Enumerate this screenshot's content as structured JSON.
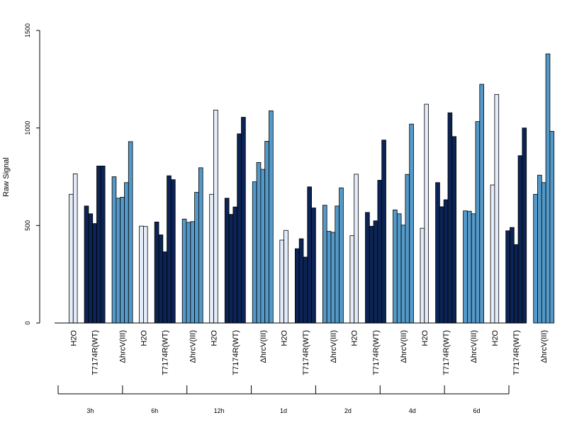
{
  "chart_data": {
    "type": "bar",
    "ylabel": "Raw Signal",
    "ylim": [
      0,
      1500
    ],
    "yticks": [
      0,
      500,
      1000,
      1500
    ],
    "groups": [
      "3h",
      "6h",
      "12h",
      "1d",
      "2d",
      "4d",
      "6d"
    ],
    "subgroups": [
      "H2O",
      "T7174R(WT)",
      "ΔhrcV(III)"
    ],
    "subgroup_colors": [
      "#e3ecf8",
      "#0c2455",
      "#5499c8"
    ],
    "values": [
      [
        [
          660,
          765
        ],
        [
          600,
          560,
          510,
          805,
          805
        ],
        [
          750,
          640,
          645,
          720,
          930
        ]
      ],
      [
        [
          497,
          495
        ],
        [
          518,
          452,
          365,
          755,
          735
        ],
        [
          533,
          516,
          520,
          670,
          796
        ]
      ],
      [
        [
          660,
          1092
        ],
        [
          640,
          557,
          595,
          970,
          1055
        ],
        [
          724,
          823,
          788,
          932,
          1088
        ]
      ],
      [
        [
          425,
          475
        ],
        [
          381,
          432,
          338,
          698,
          590
        ],
        [
          604,
          470,
          465,
          600,
          693
        ]
      ],
      [
        [
          448,
          763
        ],
        [
          567,
          496,
          524,
          732,
          938
        ],
        [
          580,
          560,
          502,
          762,
          1020
        ]
      ],
      [
        [
          486,
          1122
        ],
        [
          720,
          596,
          632,
          1078,
          956
        ],
        [
          575,
          573,
          560,
          1033,
          1224
        ]
      ],
      [
        [
          708,
          1172
        ],
        [
          473,
          490,
          402,
          858,
          1000
        ],
        [
          660,
          758,
          720,
          1380,
          983
        ]
      ]
    ]
  }
}
